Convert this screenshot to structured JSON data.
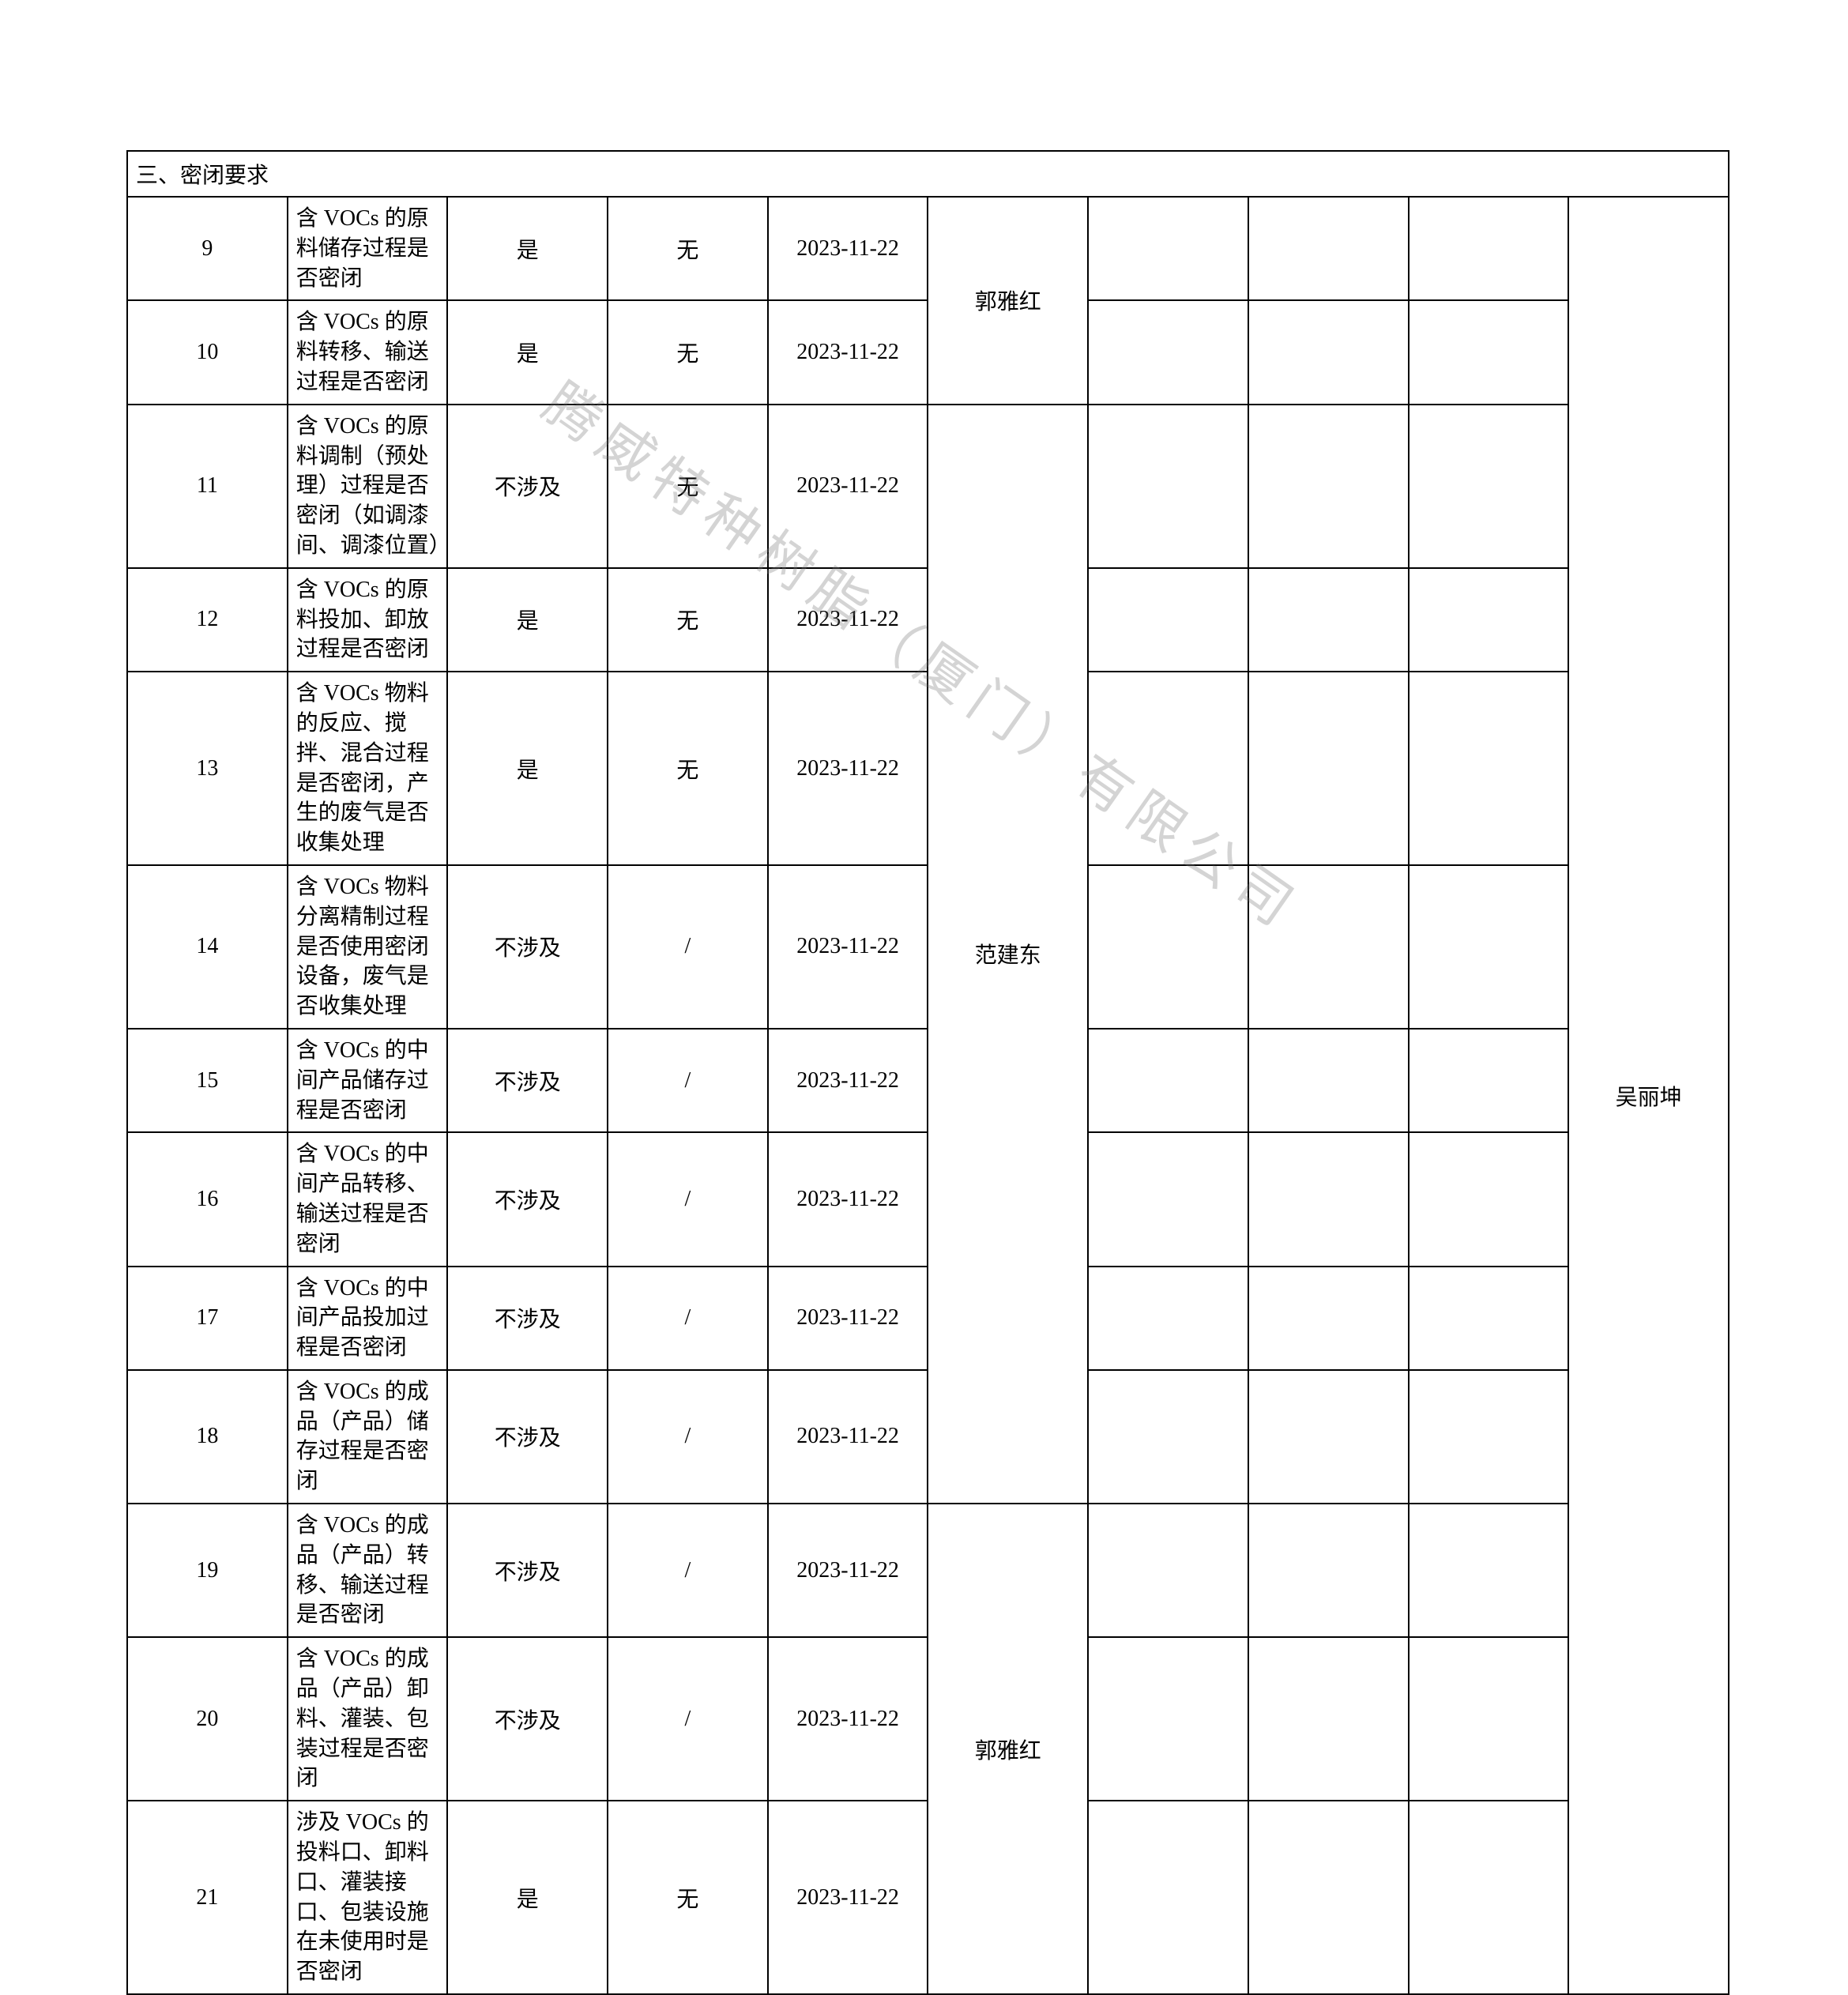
{
  "watermark_text": "腾威特种树脂（厦门）有限公司",
  "section_title": "三、密闭要求",
  "persons": {
    "g1": "郭雅红",
    "g2": "范建东",
    "g3": "郭雅红",
    "last": "吴丽坤"
  },
  "rows": [
    {
      "n": "9",
      "desc": "含 VOCs 的原料储存过程是否密闭",
      "status": "是",
      "flag": "无",
      "date": "2023-11-22"
    },
    {
      "n": "10",
      "desc": "含 VOCs 的原料转移、输送过程是否密闭",
      "status": "是",
      "flag": "无",
      "date": "2023-11-22"
    },
    {
      "n": "11",
      "desc": "含 VOCs 的原料调制（预处理）过程是否密闭（如调漆间、调漆位置）",
      "status": "不涉及",
      "flag": "无",
      "date": "2023-11-22"
    },
    {
      "n": "12",
      "desc": "含 VOCs 的原料投加、卸放过程是否密闭",
      "status": "是",
      "flag": "无",
      "date": "2023-11-22"
    },
    {
      "n": "13",
      "desc": "含 VOCs 物料的反应、搅拌、混合过程是否密闭，产生的废气是否收集处理",
      "status": "是",
      "flag": "无",
      "date": "2023-11-22"
    },
    {
      "n": "14",
      "desc": "含 VOCs 物料分离精制过程是否使用密闭设备，废气是否收集处理",
      "status": "不涉及",
      "flag": "/",
      "date": "2023-11-22"
    },
    {
      "n": "15",
      "desc": "含 VOCs 的中间产品储存过程是否密闭",
      "status": "不涉及",
      "flag": "/",
      "date": "2023-11-22"
    },
    {
      "n": "16",
      "desc": "含 VOCs 的中间产品转移、输送过程是否密闭",
      "status": "不涉及",
      "flag": "/",
      "date": "2023-11-22"
    },
    {
      "n": "17",
      "desc": "含 VOCs 的中间产品投加过程是否密闭",
      "status": "不涉及",
      "flag": "/",
      "date": "2023-11-22"
    },
    {
      "n": "18",
      "desc": "含 VOCs 的成品（产品）储存过程是否密闭",
      "status": "不涉及",
      "flag": "/",
      "date": "2023-11-22"
    },
    {
      "n": "19",
      "desc": "含 VOCs 的成品（产品）转移、输送过程是否密闭",
      "status": "不涉及",
      "flag": "/",
      "date": "2023-11-22"
    },
    {
      "n": "20",
      "desc": "含 VOCs 的成品（产品）卸料、灌装、包装过程是否密闭",
      "status": "不涉及",
      "flag": "/",
      "date": "2023-11-22"
    },
    {
      "n": "21",
      "desc": "涉及 VOCs 的投料口、卸料口、灌装接口、包装设施在未使用时是否密闭",
      "status": "是",
      "flag": "无",
      "date": "2023-11-22"
    }
  ],
  "table_style": {
    "border_color": "#000000",
    "font_size_pt": 21,
    "text_color": "#000000",
    "background": "#ffffff"
  }
}
